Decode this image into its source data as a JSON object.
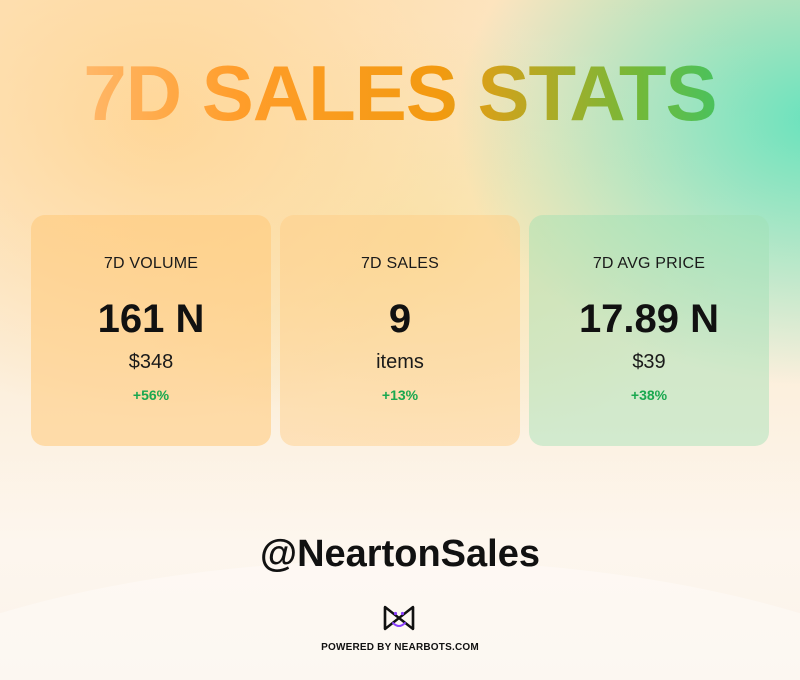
{
  "title": "7D SALES STATS",
  "stats": [
    {
      "label": "7D VOLUME",
      "value": "161 N",
      "sub": "$348",
      "change": "+56%"
    },
    {
      "label": "7D SALES",
      "value": "9",
      "sub": "items",
      "change": "+13%"
    },
    {
      "label": "7D AVG PRICE",
      "value": "17.89 N",
      "sub": "$39",
      "change": "+38%"
    }
  ],
  "handle": "@NeartonSales",
  "footer": {
    "powered_by": "POWERED BY NEARBOTS.COM",
    "logo_icon": "nearbots-logo-icon"
  },
  "colors": {
    "change_positive": "#1aa84f",
    "title_start": "#ffc58a",
    "title_end": "#1fcb82"
  }
}
